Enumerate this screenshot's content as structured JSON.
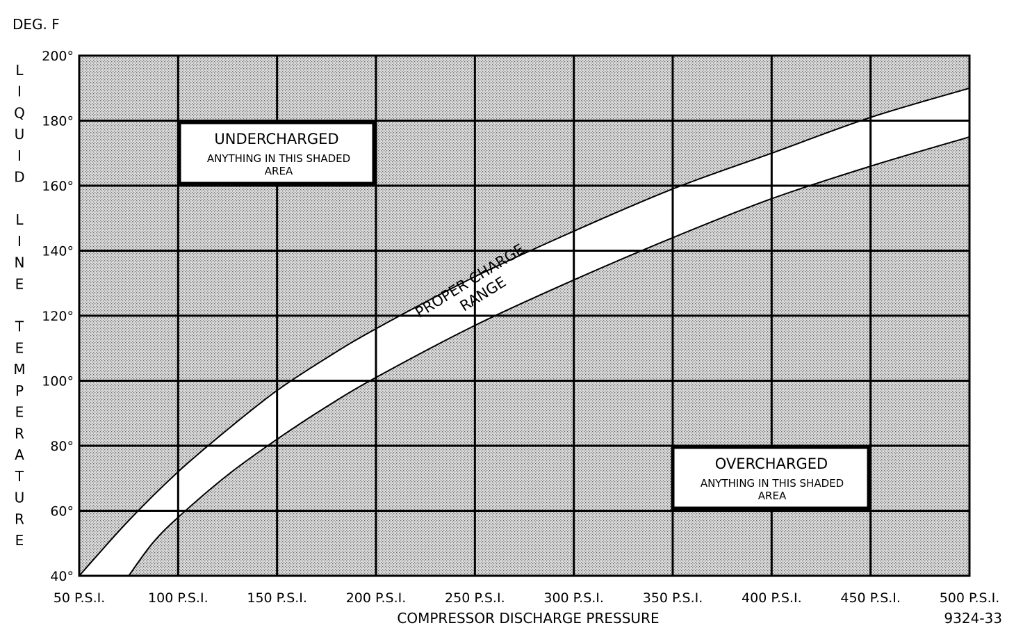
{
  "chart_data": {
    "type": "area",
    "unit_label": "DEG. F",
    "ylabel": "LIQUID LINE TEMPERATURE",
    "xlabel": "COMPRESSOR DISCHARGE PRESSURE",
    "figure_id": "9324-33",
    "xlim": [
      50,
      500
    ],
    "ylim": [
      40,
      200
    ],
    "x_ticks": [
      50,
      100,
      150,
      200,
      250,
      300,
      350,
      400,
      450,
      500
    ],
    "x_tick_labels": [
      "50 P.S.I.",
      "100 P.S.I.",
      "150 P.S.I.",
      "200 P.S.I.",
      "250 P.S.I.",
      "300 P.S.I.",
      "350 P.S.I.",
      "400 P.S.I.",
      "450 P.S.I.",
      "500 P.S.I."
    ],
    "y_ticks": [
      40,
      60,
      80,
      100,
      120,
      140,
      160,
      180,
      200
    ],
    "y_tick_labels": [
      "40°",
      "60°",
      "80°",
      "100°",
      "120°",
      "140°",
      "160°",
      "180°",
      "200°"
    ],
    "grid": true,
    "series": [
      {
        "role": "upper-boundary",
        "x": [
          50,
          75,
          100,
          125,
          150,
          175,
          200,
          250,
          300,
          350,
          400,
          450,
          500
        ],
        "values": [
          40,
          57,
          72,
          85,
          97,
          107,
          116,
          132,
          146,
          159,
          170,
          181,
          190
        ]
      },
      {
        "role": "lower-boundary",
        "x": [
          75,
          87,
          100,
          125,
          150,
          175,
          200,
          250,
          300,
          350,
          400,
          450,
          500
        ],
        "values": [
          40,
          50,
          58,
          71,
          82,
          92,
          101,
          117,
          131,
          144,
          156,
          166,
          175
        ]
      }
    ],
    "annotations": {
      "undercharged": {
        "title": "UNDERCHARGED",
        "sub": [
          "ANYTHING IN THIS SHADED",
          "AREA"
        ]
      },
      "overcharged": {
        "title": "OVERCHARGED",
        "sub": [
          "ANYTHING IN THIS SHADED",
          "AREA"
        ]
      },
      "band": [
        "PROPER CHARGE",
        "RANGE"
      ]
    }
  }
}
